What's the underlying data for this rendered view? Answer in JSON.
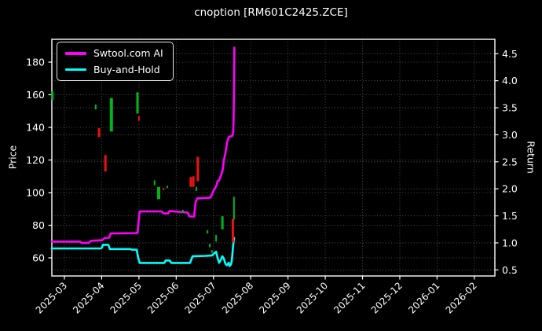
{
  "colors": {
    "background": "#000000",
    "text": "#ffffff",
    "grid": "#5a5a5a",
    "spine": "#ffffff",
    "gain_marker": "#00b41e",
    "loss_marker": "#ee1111"
  },
  "chart_data": {
    "type": "line",
    "title": "cnoption [RM601C2425.ZCE]",
    "ylabel_left": "Price",
    "ylabel_right": "Return",
    "x_unit": "months since 2025-03 tick",
    "x_ticks": [
      "2025-03",
      "2025-04",
      "2025-05",
      "2025-06",
      "2025-07",
      "2025-08",
      "2025-09",
      "2025-10",
      "2025-11",
      "2025-12",
      "2026-01",
      "2026-02"
    ],
    "y_left_ticks": [
      60,
      80,
      100,
      120,
      140,
      160,
      180
    ],
    "y_right_ticks": [
      "0.5",
      "1.0",
      "1.5",
      "2.0",
      "2.5",
      "3.0",
      "3.5",
      "4.0",
      "4.5"
    ],
    "ylim_left": [
      49,
      194
    ],
    "ylim_right": [
      0.39,
      4.9
    ],
    "legend_position": "upper left",
    "grid": "dotted",
    "series": [
      {
        "name": "Swtool.com AI",
        "color": "#ff00ff",
        "points": [
          [
            -0.34,
            70
          ],
          [
            0.42,
            70
          ],
          [
            0.46,
            69.2
          ],
          [
            0.65,
            69.2
          ],
          [
            0.72,
            70.5
          ],
          [
            1.01,
            70.8
          ],
          [
            1.08,
            72.2
          ],
          [
            1.2,
            72.3
          ],
          [
            1.24,
            75
          ],
          [
            1.9,
            75.2
          ],
          [
            1.96,
            75.3
          ],
          [
            2.02,
            88.5
          ],
          [
            2.61,
            88.5
          ],
          [
            2.66,
            87.3
          ],
          [
            2.78,
            87.3
          ],
          [
            2.82,
            88.7
          ],
          [
            3.18,
            88
          ],
          [
            3.31,
            87.8
          ],
          [
            3.35,
            85.5
          ],
          [
            3.48,
            85.3
          ],
          [
            3.52,
            94
          ],
          [
            3.56,
            96.5
          ],
          [
            3.88,
            96.8
          ],
          [
            3.92,
            97
          ],
          [
            3.96,
            99
          ],
          [
            4.0,
            101
          ],
          [
            4.05,
            103
          ],
          [
            4.09,
            105
          ],
          [
            4.11,
            107
          ],
          [
            4.15,
            107.5
          ],
          [
            4.19,
            110
          ],
          [
            4.24,
            113
          ],
          [
            4.26,
            116
          ],
          [
            4.28,
            120
          ],
          [
            4.3,
            122
          ],
          [
            4.32,
            124
          ],
          [
            4.34,
            127
          ],
          [
            4.36,
            130
          ],
          [
            4.38,
            132
          ],
          [
            4.41,
            134
          ],
          [
            4.43,
            134.3
          ],
          [
            4.49,
            134.6
          ],
          [
            4.51,
            135
          ],
          [
            4.53,
            137
          ],
          [
            4.54,
            145
          ],
          [
            4.55,
            165
          ],
          [
            4.56,
            188.8
          ]
        ]
      },
      {
        "name": "Buy-and-Hold",
        "color": "#00ffff",
        "points": [
          [
            -0.34,
            65.8
          ],
          [
            0.97,
            65.8
          ],
          [
            1.01,
            66.3
          ],
          [
            1.03,
            68
          ],
          [
            1.18,
            68
          ],
          [
            1.22,
            65.4
          ],
          [
            1.77,
            65.4
          ],
          [
            1.81,
            65
          ],
          [
            1.94,
            65
          ],
          [
            1.98,
            60
          ],
          [
            2.02,
            56.9
          ],
          [
            2.68,
            56.9
          ],
          [
            2.72,
            58.4
          ],
          [
            2.82,
            58.4
          ],
          [
            2.87,
            56.9
          ],
          [
            3.37,
            56.9
          ],
          [
            3.44,
            61
          ],
          [
            3.79,
            61.2
          ],
          [
            3.96,
            61.5
          ],
          [
            4.03,
            63
          ],
          [
            4.07,
            63.8
          ],
          [
            4.11,
            60
          ],
          [
            4.15,
            57
          ],
          [
            4.19,
            58.5
          ],
          [
            4.24,
            61
          ],
          [
            4.28,
            59.5
          ],
          [
            4.32,
            56.5
          ],
          [
            4.36,
            55.5
          ],
          [
            4.41,
            57
          ],
          [
            4.43,
            55
          ],
          [
            4.47,
            56
          ],
          [
            4.49,
            58
          ],
          [
            4.51,
            63
          ],
          [
            4.53,
            68
          ],
          [
            4.55,
            72.3
          ]
        ]
      }
    ],
    "trade_bars": [
      {
        "x": -0.32,
        "lo": 157,
        "hi": 162,
        "color": "green",
        "w": 3
      },
      {
        "x": 0.84,
        "lo": 151,
        "hi": 154,
        "color": "green",
        "w": 2
      },
      {
        "x": 0.93,
        "lo": 134,
        "hi": 139.5,
        "color": "red",
        "w": 3
      },
      {
        "x": 1.1,
        "lo": 113,
        "hi": 123,
        "color": "red",
        "w": 3
      },
      {
        "x": 1.26,
        "lo": 137.5,
        "hi": 158,
        "color": "green",
        "w": 4
      },
      {
        "x": 1.96,
        "lo": 148.5,
        "hi": 161.5,
        "color": "green",
        "w": 3
      },
      {
        "x": 2.0,
        "lo": 144,
        "hi": 147,
        "color": "red",
        "w": 2
      },
      {
        "x": 2.42,
        "lo": 104.5,
        "hi": 107.5,
        "color": "green",
        "w": 2
      },
      {
        "x": 2.53,
        "lo": 96,
        "hi": 103.5,
        "color": "green",
        "w": 4
      },
      {
        "x": 2.66,
        "lo": 101.5,
        "hi": 102.8,
        "color": "red",
        "w": 2
      },
      {
        "x": 2.76,
        "lo": 102.8,
        "hi": 104.2,
        "color": "green",
        "w": 2
      },
      {
        "x": 3.18,
        "lo": 87.7,
        "hi": 89.5,
        "color": "green",
        "w": 2
      },
      {
        "x": 3.39,
        "lo": 103.5,
        "hi": 109.5,
        "color": "red",
        "w": 3
      },
      {
        "x": 3.46,
        "lo": 103.5,
        "hi": 110,
        "color": "red",
        "w": 3
      },
      {
        "x": 3.54,
        "lo": 101,
        "hi": 103.5,
        "color": "green",
        "w": 2
      },
      {
        "x": 3.58,
        "lo": 107,
        "hi": 122,
        "color": "red",
        "w": 3
      },
      {
        "x": 3.84,
        "lo": 75,
        "hi": 77,
        "color": "green",
        "w": 2
      },
      {
        "x": 3.9,
        "lo": 66.5,
        "hi": 68.7,
        "color": "green",
        "w": 2
      },
      {
        "x": 3.96,
        "lo": 63,
        "hi": 64.7,
        "color": "green",
        "w": 2
      },
      {
        "x": 4.07,
        "lo": 70,
        "hi": 74,
        "color": "green",
        "w": 2
      },
      {
        "x": 4.24,
        "lo": 77.5,
        "hi": 85.5,
        "color": "green",
        "w": 3
      },
      {
        "x": 4.52,
        "lo": 69.5,
        "hi": 84,
        "color": "red",
        "w": 3
      },
      {
        "x": 4.55,
        "lo": 83.5,
        "hi": 97.5,
        "color": "green",
        "w": 2
      }
    ]
  }
}
